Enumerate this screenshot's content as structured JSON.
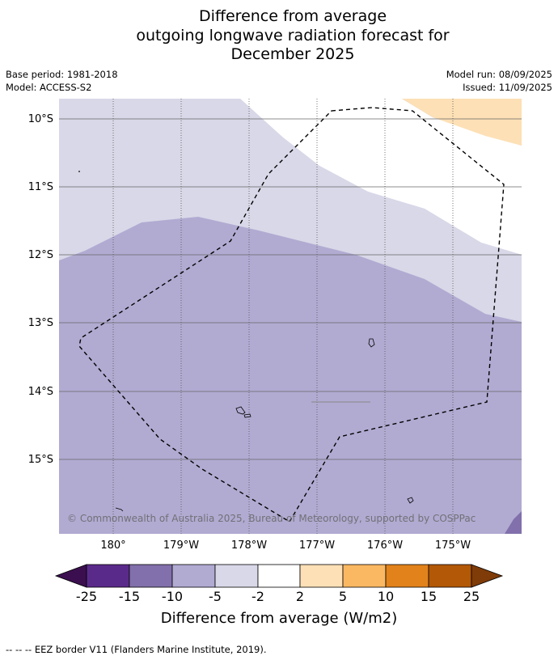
{
  "title": {
    "line1": "Difference from average",
    "line2": "outgoing longwave radiation forecast for",
    "line3": "December 2025"
  },
  "meta": {
    "base_period": "Base period: 1981-2018",
    "model": "Model: ACCESS-S2",
    "model_run": "Model run: 08/09/2025",
    "issued": "Issued: 11/09/2025"
  },
  "map": {
    "lat_labels": [
      "10°S",
      "11°S",
      "12°S",
      "13°S",
      "14°S",
      "15°S"
    ],
    "lon_labels": [
      "180°",
      "179°W",
      "178°W",
      "177°W",
      "176°W",
      "175°W"
    ],
    "copyright": "© Commonwealth of Australia 2025, Bureau of Meteorology, supported by COSPPac"
  },
  "colorbar": {
    "title": "Difference from average (W/m2)",
    "ticks": [
      "-25",
      "-15",
      "-10",
      "-5",
      "-2",
      "2",
      "5",
      "10",
      "15",
      "25"
    ],
    "colors": {
      "lt_minus25": "#3b0f4f",
      "minus25_minus15": "#5a2a8a",
      "minus15_minus10": "#8170ab",
      "minus10_minus5": "#b1abd2",
      "minus5_minus2": "#d8d8e8",
      "minus2_2": "#ffffff",
      "2_5": "#fde0b6",
      "5_10": "#fbb862",
      "10_15": "#e2821b",
      "15_25": "#b35806",
      "gt_25": "#7f3b08"
    }
  },
  "footnote": "--  --  -- EEZ border V11 (Flanders Marine Institute, 2019)."
}
